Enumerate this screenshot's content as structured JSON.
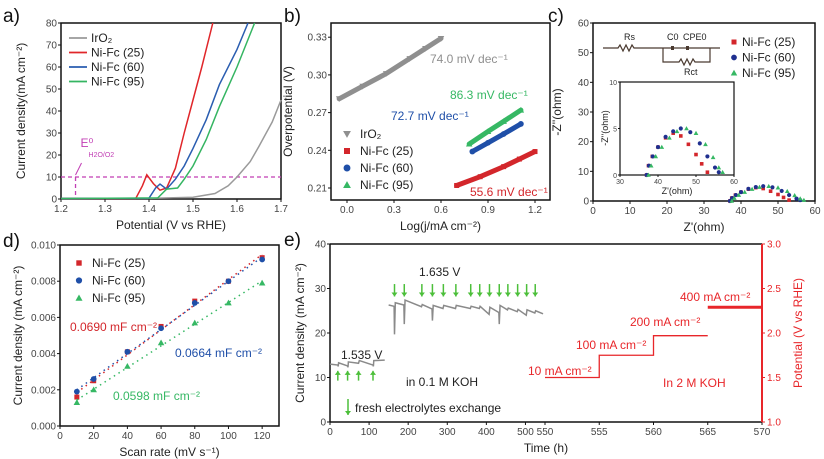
{
  "chart_data": [
    {
      "panel_label": "a)",
      "type": "line",
      "xlabel": "Potential (V vs RHE)",
      "ylabel": "Current density(mA cm⁻²)",
      "xlim": [
        1.2,
        1.7
      ],
      "ylim": [
        0,
        80
      ],
      "x_tick_labels": [
        "1.2",
        "1.3",
        "1.4",
        "1.5",
        "1.6",
        "1.7"
      ],
      "y_tick_labels": [
        "0",
        "10",
        "20",
        "30",
        "40",
        "50",
        "60",
        "70",
        "80"
      ],
      "legend": "top-left",
      "annotation": {
        "text": "E⁰",
        "sub": "H2O/O2",
        "color": "#c23fb5",
        "x": 1.233,
        "y": 10
      },
      "series": [
        {
          "name": "IrO₂",
          "color": "#9a9a9a",
          "points": [
            [
              1.2,
              0.3
            ],
            [
              1.4,
              0.3
            ],
            [
              1.5,
              0.8
            ],
            [
              1.55,
              2.5
            ],
            [
              1.58,
              6
            ],
            [
              1.6,
              10
            ],
            [
              1.63,
              17
            ],
            [
              1.65,
              24
            ],
            [
              1.68,
              35
            ],
            [
              1.7,
              45
            ]
          ]
        },
        {
          "name": "Ni-Fc (25)",
          "color": "#e0262a",
          "points": [
            [
              1.2,
              0.2
            ],
            [
              1.37,
              0.3
            ],
            [
              1.385,
              6
            ],
            [
              1.395,
              11
            ],
            [
              1.41,
              7
            ],
            [
              1.425,
              4
            ],
            [
              1.44,
              5
            ],
            [
              1.46,
              14
            ],
            [
              1.48,
              30
            ],
            [
              1.5,
              45
            ],
            [
              1.52,
              60
            ],
            [
              1.545,
              80
            ]
          ]
        },
        {
          "name": "Ni-Fc (60)",
          "color": "#2a5db0",
          "points": [
            [
              1.2,
              0.2
            ],
            [
              1.4,
              0.4
            ],
            [
              1.415,
              5
            ],
            [
              1.425,
              6.8
            ],
            [
              1.44,
              4.5
            ],
            [
              1.46,
              9
            ],
            [
              1.48,
              15
            ],
            [
              1.5,
              23
            ],
            [
              1.53,
              36
            ],
            [
              1.56,
              52
            ],
            [
              1.6,
              68
            ],
            [
              1.625,
              80
            ]
          ]
        },
        {
          "name": "Ni-Fc (95)",
          "color": "#35b562",
          "points": [
            [
              1.2,
              0.2
            ],
            [
              1.42,
              0.5
            ],
            [
              1.44,
              4.5
            ],
            [
              1.465,
              5
            ],
            [
              1.48,
              9
            ],
            [
              1.5,
              15
            ],
            [
              1.53,
              27
            ],
            [
              1.56,
              42
            ],
            [
              1.6,
              60
            ],
            [
              1.64,
              80
            ]
          ]
        }
      ]
    },
    {
      "panel_label": "b)",
      "type": "scatter",
      "xlabel": "Log(j/mA cm⁻²)",
      "ylabel": "Overpotential (V)",
      "xlim": [
        -0.1,
        1.3
      ],
      "ylim": [
        0.2,
        0.34
      ],
      "x_tick_labels": [
        "0.0",
        "0.3",
        "0.6",
        "0.9",
        "1.2"
      ],
      "y_tick_labels": [
        "0.21",
        "0.24",
        "0.27",
        "0.30",
        "0.33"
      ],
      "legend": "bottom-left",
      "series": [
        {
          "name": "IrO₂",
          "color": "#8f8f8f",
          "marker": "triangle-down",
          "slope_label": "74.0 mV dec⁻¹",
          "points": [
            [
              -0.05,
              0.281
            ],
            [
              0.1,
              0.291
            ],
            [
              0.25,
              0.301
            ],
            [
              0.4,
              0.313
            ],
            [
              0.5,
              0.321
            ],
            [
              0.6,
              0.329
            ]
          ]
        },
        {
          "name": "Ni-Fc (25)",
          "color": "#d3262b",
          "marker": "square",
          "slope_label": "55.6 mV dec⁻¹",
          "points": [
            [
              0.7,
              0.212
            ],
            [
              0.85,
              0.219
            ],
            [
              1.0,
              0.227
            ],
            [
              1.1,
              0.233
            ],
            [
              1.2,
              0.239
            ]
          ]
        },
        {
          "name": "Ni-Fc (60)",
          "color": "#1f4fa8",
          "marker": "circle",
          "slope_label": "72.7 mV dec⁻¹",
          "points": [
            [
              0.8,
              0.239
            ],
            [
              0.9,
              0.246
            ],
            [
              1.0,
              0.253
            ],
            [
              1.11,
              0.261
            ]
          ]
        },
        {
          "name": "Ni-Fc (95)",
          "color": "#36b864",
          "marker": "triangle-up",
          "slope_label": "86.3 mV dec⁻¹",
          "points": [
            [
              0.78,
              0.245
            ],
            [
              0.9,
              0.255
            ],
            [
              1.0,
              0.263
            ],
            [
              1.11,
              0.272
            ]
          ]
        }
      ]
    },
    {
      "panel_label": "c)",
      "type": "scatter",
      "xlabel": "Z'(ohm)",
      "ylabel": "-Z''(ohm)",
      "xlim": [
        0,
        60
      ],
      "ylim": [
        0,
        60
      ],
      "x_tick_labels": [
        "0",
        "10",
        "20",
        "30",
        "40",
        "50",
        "60"
      ],
      "y_tick_labels": [
        "0",
        "10",
        "20",
        "30",
        "40",
        "50",
        "60"
      ],
      "legend": "top-right",
      "circuit": {
        "rs": "Rs",
        "c0": "C0",
        "cpe": "CPE0",
        "rct": "Rct"
      },
      "inset": {
        "xlabel": "Z'(ohm)",
        "ylabel": "-Z''(ohm)",
        "xlim": [
          30,
          60
        ],
        "ylim": [
          0,
          10
        ],
        "x_tick_labels": [
          "30",
          "40",
          "50",
          "60"
        ],
        "y_tick_labels": [
          "0",
          "5",
          "10"
        ]
      },
      "series": [
        {
          "name": "Ni-Fc (25)",
          "color": "#d3262b",
          "marker": "square",
          "points": [
            [
              37,
              0
            ],
            [
              37.5,
              1
            ],
            [
              38.5,
              2
            ],
            [
              40,
              3
            ],
            [
              42,
              4
            ],
            [
              44,
              4.5
            ],
            [
              46,
              4.2
            ],
            [
              48,
              3.3
            ],
            [
              50,
              2.2
            ],
            [
              51.5,
              1.2
            ],
            [
              53,
              0.3
            ]
          ]
        },
        {
          "name": "Ni-Fc (60)",
          "color": "#1f2f8f",
          "marker": "circle",
          "points": [
            [
              37,
              0
            ],
            [
              37.6,
              1
            ],
            [
              38.6,
              2
            ],
            [
              40,
              3
            ],
            [
              42,
              4.1
            ],
            [
              44,
              4.7
            ],
            [
              46,
              5
            ],
            [
              48.5,
              4.6
            ],
            [
              51,
              3.4
            ],
            [
              53,
              2
            ],
            [
              55,
              0.8
            ],
            [
              56,
              0.3
            ]
          ]
        },
        {
          "name": "Ni-Fc (95)",
          "color": "#36b864",
          "marker": "triangle-up",
          "points": [
            [
              37.5,
              0
            ],
            [
              38.2,
              1
            ],
            [
              39.4,
              2
            ],
            [
              41,
              3
            ],
            [
              43,
              4
            ],
            [
              45,
              4.7
            ],
            [
              47.5,
              5
            ],
            [
              50,
              4.5
            ],
            [
              52.5,
              3.3
            ],
            [
              54.5,
              1.9
            ],
            [
              56,
              0.8
            ],
            [
              57,
              0.3
            ]
          ]
        }
      ]
    },
    {
      "panel_label": "d)",
      "type": "scatter",
      "xlabel": "Scan rate (mV s⁻¹)",
      "ylabel": "Current density (mA cm⁻²)",
      "xlim": [
        0,
        130
      ],
      "ylim": [
        0,
        0.01
      ],
      "x_tick_labels": [
        "0",
        "20",
        "40",
        "60",
        "80",
        "100",
        "120"
      ],
      "y_tick_labels": [
        "0.000",
        "0.002",
        "0.004",
        "0.006",
        "0.008",
        "0.010"
      ],
      "legend": "top-left",
      "x": [
        10,
        20,
        40,
        60,
        80,
        100,
        120
      ],
      "series": [
        {
          "name": "Ni-Fc (25)",
          "color": "#d3262b",
          "marker": "square",
          "fit_label": "0.0690 mF cm⁻²",
          "values": [
            0.0016,
            0.0025,
            0.0041,
            0.0055,
            0.0069,
            0.008,
            0.0093
          ]
        },
        {
          "name": "Ni-Fc (60)",
          "color": "#1f4fa8",
          "marker": "circle",
          "fit_label": "0.0664 mF cm⁻²",
          "values": [
            0.0019,
            0.0026,
            0.0041,
            0.0054,
            0.0068,
            0.008,
            0.0092
          ]
        },
        {
          "name": "Ni-Fc (95)",
          "color": "#36b864",
          "marker": "triangle-up",
          "fit_label": "0.0598 mF cm⁻²",
          "values": [
            0.0013,
            0.002,
            0.0033,
            0.0046,
            0.0057,
            0.0068,
            0.0079
          ]
        }
      ]
    },
    {
      "panel_label": "e)",
      "type": "line",
      "xlabel": "Time (h)",
      "ylabel": "Current density (mA cm⁻²)",
      "ylabel_right": "Potential (V vs RHE)",
      "x_break": 550,
      "xlim": [
        0,
        570
      ],
      "ylim": [
        0,
        40
      ],
      "ylim_right": [
        1.0,
        3.0
      ],
      "x_tick_labels": [
        "0",
        "100",
        "200",
        "300",
        "400",
        "500",
        "550",
        "555",
        "560",
        "565",
        "570"
      ],
      "y_tick_labels": [
        "0",
        "10",
        "20",
        "30",
        "40"
      ],
      "y_right_tick_labels": [
        "1.0",
        "1.5",
        "2.0",
        "2.5",
        "3.0"
      ],
      "right_axis_color": "#e8262a",
      "arrow_color": "#4cbf3a",
      "labels": {
        "v1": "1.535 V",
        "v2": "1.635 V",
        "koh1": "in 0.1 M KOH",
        "koh2": "In 2 M KOH",
        "legend": "fresh electrolytes exchange",
        "j10": "10 mA cm⁻²",
        "j100": "100 mA cm⁻²",
        "j200": "200 mA cm⁻²",
        "j400": "400 mA cm⁻²"
      },
      "exchange_times_up": [
        20,
        45,
        73,
        110
      ],
      "exchange_times_down": [
        165,
        190,
        235,
        262,
        290,
        322,
        360,
        383,
        408,
        433,
        455,
        480,
        503,
        525
      ],
      "series_current": {
        "color": "#8a8a8a",
        "segments": [
          [
            [
              0,
              13
            ],
            [
              20,
              12.8
            ],
            [
              21,
              12.5
            ],
            [
              22,
              13.3
            ],
            [
              45,
              12.6
            ],
            [
              46,
              12.3
            ],
            [
              47,
              13.5
            ],
            [
              73,
              13.2
            ],
            [
              75,
              13.8
            ],
            [
              110,
              12.8
            ],
            [
              111,
              12.5
            ],
            [
              112,
              13.8
            ],
            [
              140,
              13.9
            ]
          ],
          [
            [
              150,
              26.3
            ],
            [
              164,
              26
            ],
            [
              165,
              19.7
            ],
            [
              167,
              26.8
            ],
            [
              189,
              26.3
            ],
            [
              190,
              22
            ],
            [
              192,
              27.4
            ],
            [
              234,
              25.9
            ],
            [
              236,
              26.4
            ],
            [
              261,
              25.4
            ],
            [
              262,
              22.8
            ],
            [
              264,
              26.2
            ],
            [
              289,
              25.5
            ],
            [
              291,
              26.2
            ],
            [
              321,
              25.5
            ],
            [
              323,
              26.2
            ],
            [
              359,
              25.5
            ],
            [
              361,
              26
            ],
            [
              382,
              25.5
            ],
            [
              384,
              26
            ],
            [
              407,
              24.2
            ],
            [
              409,
              25.8
            ],
            [
              432,
              24.6
            ],
            [
              433,
              22
            ],
            [
              435,
              26.2
            ],
            [
              454,
              25.2
            ],
            [
              456,
              25.6
            ],
            [
              479,
              24.8
            ],
            [
              481,
              25.3
            ],
            [
              502,
              24
            ],
            [
              504,
              25.2
            ],
            [
              524,
              24.5
            ],
            [
              526,
              25
            ],
            [
              545,
              24.3
            ]
          ]
        ]
      },
      "series_potential": {
        "color": "#e8262a",
        "segments": [
          [
            [
              550,
              1.5
            ],
            [
              555,
              1.5
            ],
            [
              555,
              1.75
            ],
            [
              560,
              1.75
            ],
            [
              560,
              1.97
            ],
            [
              565,
              1.97
            ]
          ],
          [
            [
              565,
              2.29
            ],
            [
              570,
              2.29
            ]
          ]
        ]
      }
    }
  ]
}
